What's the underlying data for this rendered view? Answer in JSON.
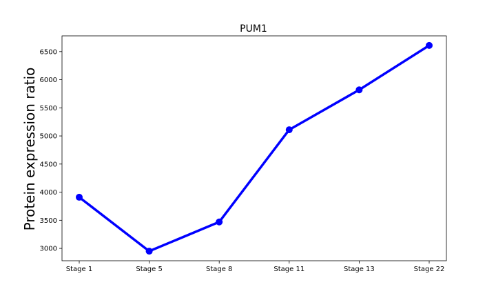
{
  "chart_data": {
    "type": "line",
    "title": "PUM1",
    "xlabel": "",
    "ylabel": "Protein expression ratio",
    "categories": [
      "Stage 1",
      "Stage 5",
      "Stage 8",
      "Stage 11",
      "Stage 13",
      "Stage 22"
    ],
    "series": [
      {
        "values": [
          3910,
          2950,
          3470,
          5110,
          5820,
          6610
        ]
      }
    ],
    "ylim": [
      2780,
      6780
    ],
    "yticks": [
      3000,
      3500,
      4000,
      4500,
      5000,
      5500,
      6000,
      6500
    ],
    "grid": false,
    "colors": {
      "line": "#0000ff",
      "marker": "#0000ff"
    }
  }
}
